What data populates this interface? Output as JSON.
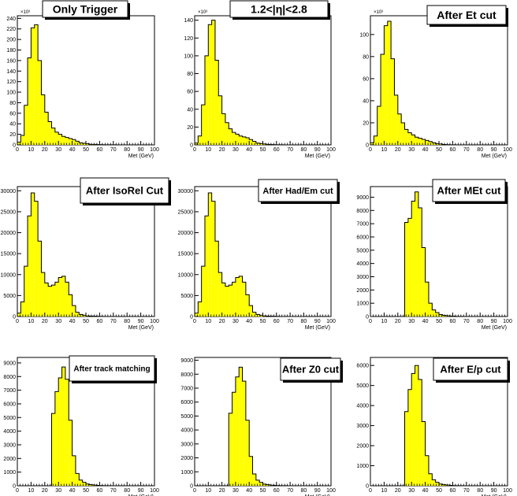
{
  "chart_data": [
    {
      "type": "bar",
      "title": "Only Trigger",
      "xlabel": "Met (GeV)",
      "ylabel": "",
      "exponent_label": "×10³",
      "x_ticks": [
        "0",
        "10",
        "20",
        "30",
        "40",
        "50",
        "60",
        "70",
        "80",
        "90",
        "100"
      ],
      "xlim": [
        0,
        100
      ],
      "ylim": [
        0,
        245
      ],
      "y_ticks": [
        "0",
        "20",
        "40",
        "60",
        "80",
        "100",
        "120",
        "140",
        "160",
        "180",
        "200",
        "220",
        "240"
      ],
      "bin_width": 2.5,
      "values": [
        5,
        18,
        75,
        165,
        222,
        228,
        160,
        95,
        62,
        44,
        32,
        24,
        20,
        16,
        14,
        12,
        10,
        7,
        4,
        3,
        2,
        1,
        1,
        0.5,
        0.3,
        0.2,
        0.1,
        0.1,
        0.1,
        0,
        0,
        0,
        0,
        0,
        0,
        0,
        0,
        0,
        0,
        0
      ]
    },
    {
      "type": "bar",
      "title": "1.2<|η|<2.8",
      "xlabel": "Met (GeV)",
      "ylabel": "",
      "exponent_label": "×10³",
      "x_ticks": [
        "0",
        "10",
        "20",
        "30",
        "40",
        "50",
        "60",
        "70",
        "80",
        "90",
        "100"
      ],
      "xlim": [
        0,
        100
      ],
      "ylim": [
        0,
        145
      ],
      "y_ticks": [
        "0",
        "20",
        "40",
        "60",
        "80",
        "100",
        "120",
        "140"
      ],
      "bin_width": 2.5,
      "values": [
        2,
        10,
        45,
        100,
        135,
        140,
        95,
        55,
        35,
        25,
        18,
        14,
        12,
        10,
        9,
        8,
        6,
        4,
        2,
        1.5,
        1,
        0.5,
        0.3,
        0.2,
        0.1,
        0.1,
        0,
        0,
        0,
        0,
        0,
        0,
        0,
        0,
        0,
        0,
        0,
        0,
        0,
        0
      ]
    },
    {
      "type": "bar",
      "title": "After Et cut",
      "xlabel": "Met (GeV)",
      "ylabel": "",
      "exponent_label": "×10³",
      "x_ticks": [
        "0",
        "10",
        "20",
        "30",
        "40",
        "50",
        "60",
        "70",
        "80",
        "90",
        "100"
      ],
      "xlim": [
        0,
        100
      ],
      "ylim": [
        0,
        117
      ],
      "y_ticks": [
        "0",
        "20",
        "40",
        "60",
        "80",
        "100"
      ],
      "bin_width": 2.5,
      "values": [
        2,
        8,
        35,
        82,
        108,
        112,
        78,
        45,
        28,
        20,
        14,
        11,
        9,
        7,
        6,
        5,
        4,
        3,
        2,
        1,
        0.8,
        0.4,
        0.2,
        0.1,
        0.1,
        0,
        0,
        0,
        0,
        0,
        0,
        0,
        0,
        0,
        0,
        0,
        0,
        0,
        0,
        0
      ]
    },
    {
      "type": "bar",
      "title": "After IsoRel Cut",
      "xlabel": "Met (GeV)",
      "ylabel": "",
      "x_ticks": [
        "0",
        "10",
        "20",
        "30",
        "40",
        "50",
        "60",
        "70",
        "80",
        "90",
        "100"
      ],
      "xlim": [
        0,
        100
      ],
      "ylim": [
        0,
        31000
      ],
      "y_ticks": [
        "0",
        "5000",
        "10000",
        "15000",
        "20000",
        "25000",
        "30000"
      ],
      "bin_width": 2.5,
      "values": [
        800,
        3500,
        12000,
        24000,
        29500,
        27500,
        18000,
        10500,
        8000,
        7200,
        7500,
        8200,
        9300,
        9600,
        8200,
        5200,
        2600,
        1000,
        500,
        300,
        150,
        90,
        60,
        40,
        20,
        10,
        5,
        3,
        1,
        0,
        0,
        0,
        0,
        0,
        0,
        0,
        0,
        0,
        0,
        0
      ]
    },
    {
      "type": "bar",
      "title": "After Had/Em cut",
      "xlabel": "Met (GeV)",
      "ylabel": "",
      "x_ticks": [
        "0",
        "10",
        "20",
        "30",
        "40",
        "50",
        "60",
        "70",
        "80",
        "90",
        "100"
      ],
      "xlim": [
        0,
        100
      ],
      "ylim": [
        0,
        31000
      ],
      "y_ticks": [
        "0",
        "5000",
        "10000",
        "15000",
        "20000",
        "25000",
        "30000"
      ],
      "bin_width": 2.5,
      "values": [
        800,
        3500,
        12000,
        24000,
        29500,
        27500,
        18000,
        10500,
        8000,
        7200,
        7500,
        8200,
        9300,
        9600,
        8200,
        5200,
        2600,
        1000,
        500,
        300,
        150,
        90,
        60,
        40,
        20,
        10,
        5,
        3,
        1,
        0,
        0,
        0,
        0,
        0,
        0,
        0,
        0,
        0,
        0,
        0
      ]
    },
    {
      "type": "bar",
      "title": "After MEt cut",
      "xlabel": "Met (GeV)",
      "ylabel": "",
      "x_ticks": [
        "0",
        "10",
        "20",
        "30",
        "40",
        "50",
        "60",
        "70",
        "80",
        "90",
        "100"
      ],
      "xlim": [
        0,
        100
      ],
      "ylim": [
        0,
        9800
      ],
      "y_ticks": [
        "0",
        "1000",
        "2000",
        "3000",
        "4000",
        "5000",
        "6000",
        "7000",
        "8000",
        "9000"
      ],
      "bin_width": 2.5,
      "values": [
        0,
        0,
        0,
        0,
        0,
        0,
        0,
        0,
        0,
        0,
        7100,
        7400,
        8700,
        9400,
        8200,
        5200,
        2600,
        1000,
        500,
        300,
        150,
        90,
        60,
        40,
        20,
        10,
        5,
        3,
        1,
        0,
        0,
        0,
        0,
        0,
        0,
        0,
        0,
        0,
        0,
        0
      ]
    },
    {
      "type": "bar",
      "title": "After track matching",
      "xlabel": "Met (GeV)",
      "ylabel": "",
      "x_ticks": [
        "0",
        "10",
        "20",
        "30",
        "40",
        "50",
        "60",
        "70",
        "80",
        "90",
        "100"
      ],
      "xlim": [
        0,
        100
      ],
      "ylim": [
        0,
        9400
      ],
      "y_ticks": [
        "0",
        "1000",
        "2000",
        "3000",
        "4000",
        "5000",
        "6000",
        "7000",
        "8000",
        "9000"
      ],
      "bin_width": 2.5,
      "values": [
        0,
        0,
        0,
        0,
        0,
        0,
        0,
        0,
        0,
        0,
        5300,
        6900,
        7900,
        8700,
        7800,
        4800,
        2200,
        900,
        420,
        250,
        130,
        80,
        50,
        30,
        15,
        8,
        4,
        2,
        1,
        0,
        0,
        0,
        0,
        0,
        0,
        0,
        0,
        0,
        0,
        0
      ]
    },
    {
      "type": "bar",
      "title": "After Z0 cut",
      "xlabel": "Met (GeV)",
      "ylabel": "",
      "x_ticks": [
        "0",
        "10",
        "20",
        "30",
        "40",
        "50",
        "60",
        "70",
        "80",
        "90",
        "100"
      ],
      "xlim": [
        0,
        100
      ],
      "ylim": [
        0,
        9200
      ],
      "y_ticks": [
        "0",
        "1000",
        "2000",
        "3000",
        "4000",
        "5000",
        "6000",
        "7000",
        "8000",
        "9000"
      ],
      "bin_width": 2.5,
      "values": [
        0,
        0,
        0,
        0,
        0,
        0,
        0,
        0,
        0,
        0,
        5200,
        6700,
        7800,
        8500,
        7500,
        4700,
        2100,
        850,
        400,
        240,
        120,
        75,
        45,
        28,
        14,
        7,
        4,
        2,
        1,
        0,
        0,
        0,
        0,
        0,
        0,
        0,
        0,
        0,
        0,
        0
      ]
    },
    {
      "type": "bar",
      "title": "After E/p cut",
      "xlabel": "Met (GeV)",
      "ylabel": "",
      "x_ticks": [
        "0",
        "10",
        "20",
        "30",
        "40",
        "50",
        "60",
        "70",
        "80",
        "90",
        "100"
      ],
      "xlim": [
        0,
        100
      ],
      "ylim": [
        0,
        6400
      ],
      "y_ticks": [
        "0",
        "1000",
        "2000",
        "3000",
        "4000",
        "5000",
        "6000"
      ],
      "bin_width": 2.5,
      "values": [
        0,
        0,
        0,
        0,
        0,
        0,
        0,
        0,
        0,
        0,
        3700,
        4800,
        5600,
        6000,
        5300,
        3200,
        1500,
        600,
        300,
        170,
        90,
        55,
        35,
        20,
        10,
        5,
        3,
        1,
        0.5,
        0,
        0,
        0,
        0,
        0,
        0,
        0,
        0,
        0,
        0,
        0
      ]
    }
  ],
  "colors": {
    "fill": "#ffff00",
    "line": "#000000",
    "frame": "#000000",
    "title_bg": "#ffffff",
    "title_shadow": "#000000"
  }
}
